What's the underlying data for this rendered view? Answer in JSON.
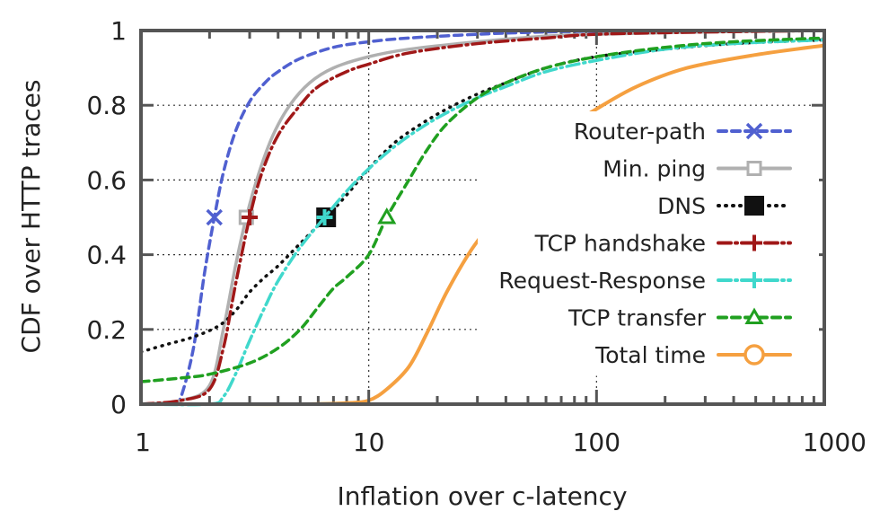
{
  "chart_data": {
    "type": "line",
    "xlabel": "Inflation over c-latency",
    "ylabel": "CDF over HTTP traces",
    "xscale": "log",
    "xlim": [
      1,
      1000
    ],
    "ylim": [
      0,
      1
    ],
    "grid": true,
    "legend_position": "right",
    "x_ticks": [
      {
        "value": 1,
        "label": "1"
      },
      {
        "value": 10,
        "label": "10"
      },
      {
        "value": 100,
        "label": "100"
      },
      {
        "value": 1000,
        "label": "1000"
      }
    ],
    "y_ticks": [
      {
        "value": 0,
        "label": "0"
      },
      {
        "value": 0.2,
        "label": "0.2"
      },
      {
        "value": 0.4,
        "label": "0.4"
      },
      {
        "value": 0.6,
        "label": "0.6"
      },
      {
        "value": 0.8,
        "label": "0.8"
      },
      {
        "value": 1,
        "label": "1"
      }
    ],
    "series": [
      {
        "name": "Router-path",
        "color": "#5060d0",
        "dash": "dashed",
        "marker": "x",
        "marker_at": [
          2.1,
          0.5
        ],
        "points": [
          [
            1.4,
            0
          ],
          [
            1.5,
            0.02
          ],
          [
            1.7,
            0.15
          ],
          [
            1.9,
            0.35
          ],
          [
            2.1,
            0.5
          ],
          [
            2.3,
            0.62
          ],
          [
            2.6,
            0.73
          ],
          [
            3,
            0.81
          ],
          [
            3.5,
            0.86
          ],
          [
            4,
            0.89
          ],
          [
            5,
            0.925
          ],
          [
            7,
            0.955
          ],
          [
            10,
            0.97
          ],
          [
            15,
            0.98
          ],
          [
            30,
            0.99
          ],
          [
            50,
            0.995
          ],
          [
            100,
            0.998
          ],
          [
            1000,
            1
          ]
        ]
      },
      {
        "name": "Min. ping",
        "color": "#b0b0b0",
        "dash": "solid",
        "marker": "square-open",
        "marker_at": [
          2.9,
          0.5
        ],
        "points": [
          [
            1,
            0
          ],
          [
            1.5,
            0.01
          ],
          [
            2,
            0.05
          ],
          [
            2.3,
            0.2
          ],
          [
            2.6,
            0.37
          ],
          [
            2.9,
            0.5
          ],
          [
            3.3,
            0.62
          ],
          [
            3.8,
            0.72
          ],
          [
            4.5,
            0.8
          ],
          [
            5.5,
            0.86
          ],
          [
            7,
            0.9
          ],
          [
            10,
            0.93
          ],
          [
            15,
            0.95
          ],
          [
            30,
            0.97
          ],
          [
            60,
            0.985
          ],
          [
            100,
            0.99
          ],
          [
            300,
            0.996
          ],
          [
            1000,
            1
          ]
        ]
      },
      {
        "name": "DNS",
        "color": "#111111",
        "dash": "dotted",
        "marker": "square-filled",
        "marker_at": [
          6.5,
          0.5
        ],
        "points": [
          [
            1,
            0.14
          ],
          [
            1.3,
            0.16
          ],
          [
            1.7,
            0.18
          ],
          [
            2.2,
            0.21
          ],
          [
            2.6,
            0.25
          ],
          [
            3,
            0.3
          ],
          [
            3.5,
            0.34
          ],
          [
            4,
            0.37
          ],
          [
            5,
            0.43
          ],
          [
            6.5,
            0.5
          ],
          [
            8,
            0.56
          ],
          [
            10,
            0.63
          ],
          [
            13,
            0.7
          ],
          [
            17,
            0.75
          ],
          [
            22,
            0.79
          ],
          [
            30,
            0.83
          ],
          [
            40,
            0.86
          ],
          [
            60,
            0.9
          ],
          [
            100,
            0.93
          ],
          [
            200,
            0.95
          ],
          [
            400,
            0.965
          ],
          [
            1000,
            0.975
          ]
        ]
      },
      {
        "name": "TCP handshake",
        "color": "#a01818",
        "dash": "dashdot",
        "marker": "plus",
        "marker_at": [
          3.0,
          0.5
        ],
        "points": [
          [
            1,
            0
          ],
          [
            1.5,
            0.01
          ],
          [
            2,
            0.04
          ],
          [
            2.3,
            0.15
          ],
          [
            2.6,
            0.32
          ],
          [
            3,
            0.5
          ],
          [
            3.4,
            0.62
          ],
          [
            4,
            0.72
          ],
          [
            5,
            0.8
          ],
          [
            6,
            0.85
          ],
          [
            8,
            0.89
          ],
          [
            10,
            0.91
          ],
          [
            15,
            0.94
          ],
          [
            30,
            0.965
          ],
          [
            60,
            0.98
          ],
          [
            100,
            0.99
          ],
          [
            300,
            0.996
          ],
          [
            1000,
            1
          ]
        ]
      },
      {
        "name": "Request-Response",
        "color": "#40d8cc",
        "dash": "dashdot",
        "marker": "plus",
        "marker_at": [
          6.4,
          0.5
        ],
        "points": [
          [
            1,
            0
          ],
          [
            2,
            0
          ],
          [
            2.3,
            0.02
          ],
          [
            2.6,
            0.08
          ],
          [
            3,
            0.17
          ],
          [
            3.5,
            0.26
          ],
          [
            4,
            0.33
          ],
          [
            5,
            0.42
          ],
          [
            6.4,
            0.5
          ],
          [
            8,
            0.57
          ],
          [
            10,
            0.63
          ],
          [
            13,
            0.69
          ],
          [
            17,
            0.74
          ],
          [
            22,
            0.78
          ],
          [
            30,
            0.82
          ],
          [
            40,
            0.85
          ],
          [
            60,
            0.89
          ],
          [
            100,
            0.92
          ],
          [
            200,
            0.95
          ],
          [
            400,
            0.965
          ],
          [
            1000,
            0.975
          ]
        ]
      },
      {
        "name": "TCP transfer",
        "color": "#20a020",
        "dash": "dashed",
        "marker": "triangle-open",
        "marker_at": [
          12,
          0.5
        ],
        "points": [
          [
            1,
            0.06
          ],
          [
            1.5,
            0.07
          ],
          [
            2,
            0.08
          ],
          [
            3,
            0.11
          ],
          [
            4,
            0.15
          ],
          [
            5,
            0.2
          ],
          [
            6,
            0.26
          ],
          [
            7,
            0.31
          ],
          [
            8,
            0.34
          ],
          [
            10,
            0.4
          ],
          [
            12,
            0.5
          ],
          [
            15,
            0.6
          ],
          [
            18,
            0.68
          ],
          [
            22,
            0.75
          ],
          [
            30,
            0.82
          ],
          [
            40,
            0.86
          ],
          [
            60,
            0.9
          ],
          [
            100,
            0.93
          ],
          [
            200,
            0.955
          ],
          [
            400,
            0.97
          ],
          [
            1000,
            0.98
          ]
        ]
      },
      {
        "name": "Total time",
        "color": "#f5a040",
        "dash": "solid",
        "marker": "circle-open",
        "marker_at": [
          36,
          0.5
        ],
        "points": [
          [
            2.4,
            0
          ],
          [
            5,
            0
          ],
          [
            8,
            0.003
          ],
          [
            10,
            0.01
          ],
          [
            12,
            0.04
          ],
          [
            15,
            0.1
          ],
          [
            18,
            0.19
          ],
          [
            22,
            0.3
          ],
          [
            28,
            0.41
          ],
          [
            36,
            0.5
          ],
          [
            45,
            0.59
          ],
          [
            60,
            0.68
          ],
          [
            80,
            0.75
          ],
          [
            100,
            0.79
          ],
          [
            150,
            0.85
          ],
          [
            250,
            0.9
          ],
          [
            500,
            0.935
          ],
          [
            1000,
            0.96
          ]
        ]
      }
    ]
  }
}
